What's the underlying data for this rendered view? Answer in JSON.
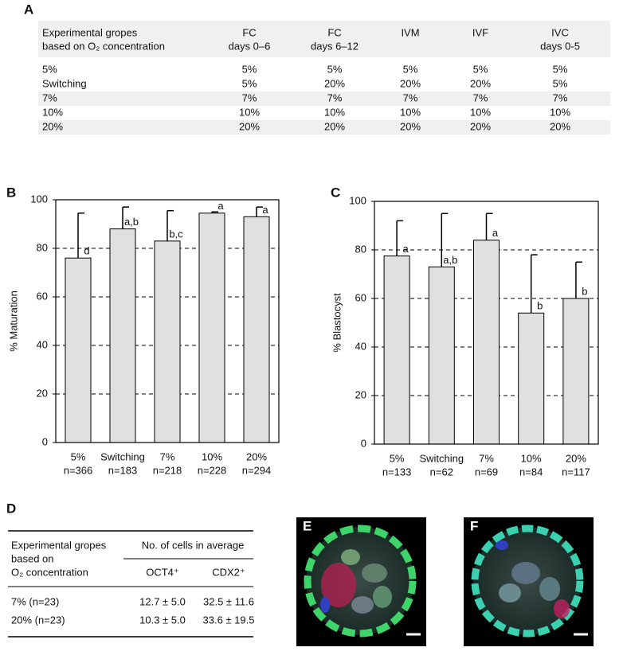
{
  "table_a": {
    "label": "A",
    "header": [
      [
        "Experimental gropes",
        "based on O₂ concentration"
      ],
      [
        "FC",
        "days 0–6"
      ],
      [
        "FC",
        "days 6–12"
      ],
      [
        "IVM"
      ],
      [
        "IVF"
      ],
      [
        "IVC",
        "days 0-5"
      ]
    ],
    "rows": [
      [
        "5%",
        "5%",
        "5%",
        "5%",
        "5%",
        "5%"
      ],
      [
        "Switching",
        "5%",
        "20%",
        "20%",
        "20%",
        "5%"
      ],
      [
        "7%",
        "7%",
        "7%",
        "7%",
        "7%",
        "7%"
      ],
      [
        "10%",
        "10%",
        "10%",
        "10%",
        "10%",
        "10%"
      ],
      [
        "20%",
        "20%",
        "20%",
        "20%",
        "20%",
        "20%"
      ]
    ]
  },
  "chart_data": [
    {
      "type": "bar",
      "label": "B",
      "ylabel": "% Maturation",
      "categories": [
        "5%",
        "Switching",
        "7%",
        "10%",
        "20%"
      ],
      "n_labels": [
        "n=366",
        "n=183",
        "n=218",
        "n=228",
        "n=294"
      ],
      "values": [
        76,
        88,
        83,
        94.5,
        93
      ],
      "errors": [
        18.5,
        9,
        12.5,
        0.5,
        4
      ],
      "annotations": [
        "d",
        "a,b",
        "b,c",
        "a",
        "a"
      ],
      "color": "#e0e0e0",
      "ylim": [
        0,
        100
      ],
      "yticks": [
        0,
        20,
        40,
        60,
        80,
        100
      ],
      "grid": true
    },
    {
      "type": "bar",
      "label": "C",
      "ylabel": "% Blastocyst",
      "categories": [
        "5%",
        "Switching",
        "7%",
        "10%",
        "20%"
      ],
      "n_labels": [
        "n=133",
        "n=62",
        "n=69",
        "n=84",
        "n=117"
      ],
      "values": [
        77.5,
        73,
        84,
        54,
        60
      ],
      "errors": [
        14.5,
        22,
        11,
        24,
        15
      ],
      "annotations": [
        "a",
        "a,b",
        "a",
        "b",
        "b"
      ],
      "color": "#e0e0e0",
      "ylim": [
        0,
        100
      ],
      "yticks": [
        0,
        20,
        40,
        60,
        80,
        100
      ],
      "grid": true
    }
  ],
  "table_d": {
    "label": "D",
    "header_left": [
      "Experimental gropes",
      "based on",
      "O₂ concentration"
    ],
    "header_group": "No. of cells in average",
    "columns": [
      "OCT4⁺",
      "CDX2⁺"
    ],
    "rows": [
      [
        "7% (n=23)",
        "12.7 ± 5.0",
        "32.5 ± 11.6"
      ],
      [
        "20% (n=23)",
        "10.3 ± 5.0",
        "33.6 ± 19.5"
      ]
    ]
  },
  "images": [
    {
      "label": "E"
    },
    {
      "label": "F"
    }
  ]
}
